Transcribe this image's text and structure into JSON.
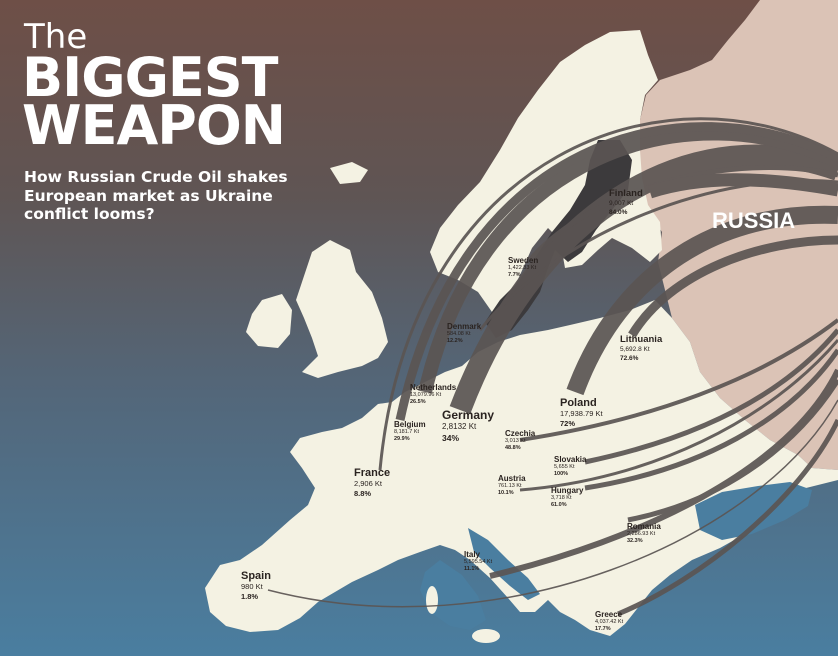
{
  "title": {
    "line1": "The",
    "line2": "BIGGEST",
    "line3": "WEAPON"
  },
  "subtitle": "How Russian Crude Oil shakes European market as Ukraine conflict looms?",
  "source_label": "RUSSIA",
  "colors": {
    "sea_top": "#6e4f47",
    "sea_bottom": "#4a7ea0",
    "land": "#f4f2e3",
    "russia": "#dbc3b6",
    "flow": "#5b5553"
  },
  "countries": [
    {
      "id": "finland",
      "name": "Finland",
      "amount": "9,007 Kt",
      "share": "84.0%"
    },
    {
      "id": "sweden",
      "name": "Sweden",
      "amount": "1,422.83 Kt",
      "share": "7.7%"
    },
    {
      "id": "denmark",
      "name": "Denmark",
      "amount": "584.08 Kt",
      "share": "12.2%"
    },
    {
      "id": "lithuania",
      "name": "Lithuania",
      "amount": "5,692.8 Kt",
      "share": "72.6%"
    },
    {
      "id": "poland",
      "name": "Poland",
      "amount": "17,938.79 Kt",
      "share": "72%"
    },
    {
      "id": "netherlands",
      "name": "Netherlands",
      "amount": "13,079.96 Kt",
      "share": "26.5%"
    },
    {
      "id": "germany",
      "name": "Germany",
      "amount": "2,8132 Kt",
      "share": "34%"
    },
    {
      "id": "belgium",
      "name": "Belgium",
      "amount": "8,181.7 Kt",
      "share": "29.9%"
    },
    {
      "id": "czechia",
      "name": "Czechia",
      "amount": "3,013 Kt",
      "share": "48.8%"
    },
    {
      "id": "slovakia",
      "name": "Slovakia",
      "amount": "5,655 Kt",
      "share": "100%"
    },
    {
      "id": "austria",
      "name": "Austria",
      "amount": "761.13 Kt",
      "share": "10.1%"
    },
    {
      "id": "hungary",
      "name": "Hungary",
      "amount": "3,718 Kt",
      "share": "61.0%"
    },
    {
      "id": "france",
      "name": "France",
      "amount": "2,906 Kt",
      "share": "8.8%"
    },
    {
      "id": "romania",
      "name": "Romania",
      "amount": "2,286.93 Kt",
      "share": "32.3%"
    },
    {
      "id": "italy",
      "name": "Italy",
      "amount": "5,595.54 Kt",
      "share": "11.1%"
    },
    {
      "id": "spain",
      "name": "Spain",
      "amount": "980 Kt",
      "share": "1.8%"
    },
    {
      "id": "greece",
      "name": "Greece",
      "amount": "4,037.42 Kt",
      "share": "17.7%"
    }
  ]
}
